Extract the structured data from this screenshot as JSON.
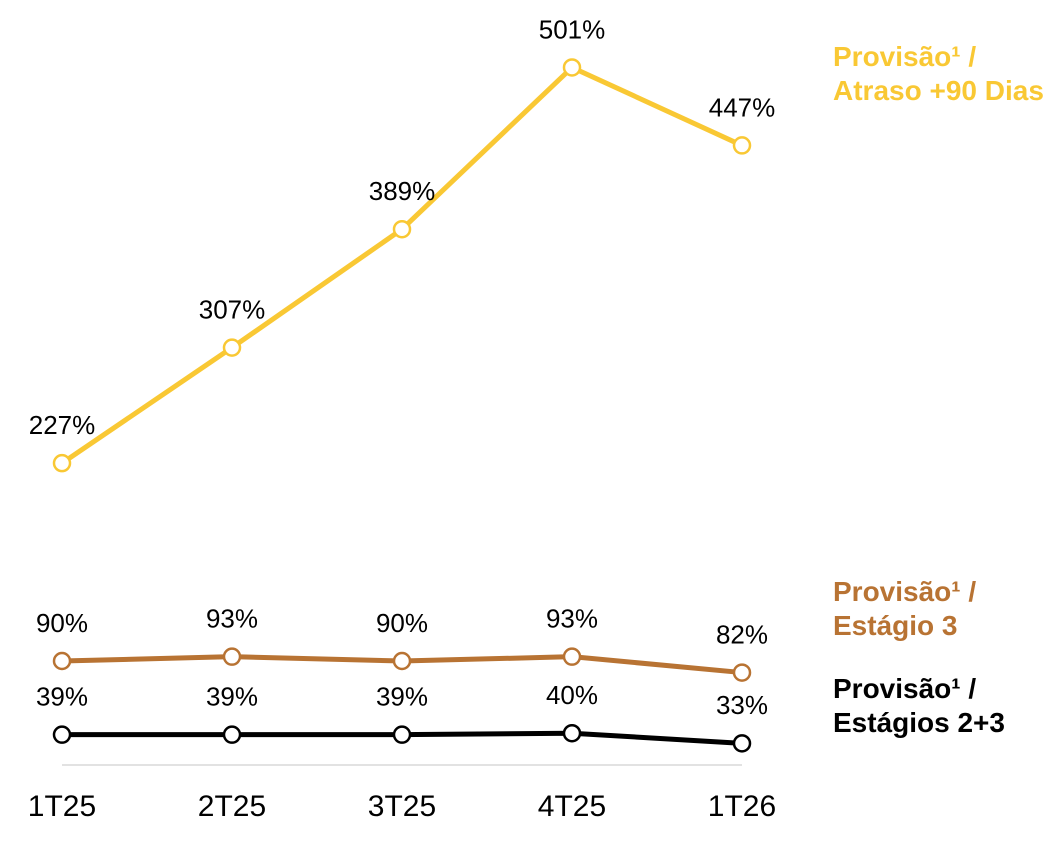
{
  "chart_data": {
    "type": "line",
    "categories": [
      "1T25",
      "2T25",
      "3T25",
      "4T25",
      "1T26"
    ],
    "series": [
      {
        "name": "Provisão¹ / Atraso +90 Dias",
        "color": "#f9c834",
        "values": [
          227,
          307,
          389,
          501,
          447
        ],
        "value_labels": [
          "227%",
          "307%",
          "389%",
          "501%",
          "447%"
        ]
      },
      {
        "name": "Provisão¹ / Estágio 3",
        "color": "#b87333",
        "values": [
          90,
          93,
          90,
          93,
          82
        ],
        "value_labels": [
          "90%",
          "93%",
          "90%",
          "93%",
          "82%"
        ]
      },
      {
        "name": "Provisão¹ / Estágios 2+3",
        "color": "#000000",
        "values": [
          39,
          39,
          39,
          40,
          33
        ],
        "value_labels": [
          "39%",
          "39%",
          "39%",
          "40%",
          "33%"
        ]
      }
    ],
    "ylim": [
      18,
      520
    ]
  }
}
